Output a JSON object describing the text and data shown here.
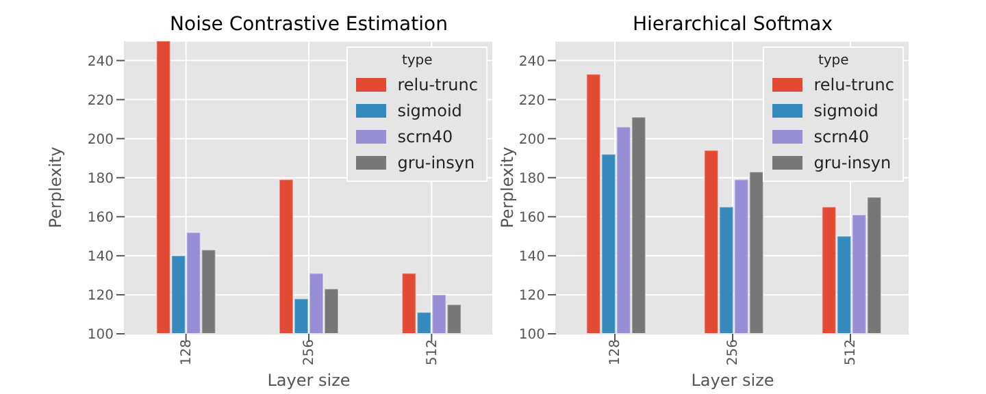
{
  "chart_data": [
    {
      "type": "bar",
      "title": "Noise Contrastive Estimation",
      "xlabel": "Layer size",
      "ylabel": "Perplexity",
      "categories": [
        "128",
        "256",
        "512"
      ],
      "series": [
        {
          "name": "relu-trunc",
          "color": "#e24a33",
          "values": [
            250,
            179,
            131
          ]
        },
        {
          "name": "sigmoid",
          "color": "#348abd",
          "values": [
            140,
            118,
            111
          ]
        },
        {
          "name": "scrn40",
          "color": "#988ed5",
          "values": [
            152,
            131,
            120
          ]
        },
        {
          "name": "gru-insyn",
          "color": "#777777",
          "values": [
            143,
            123,
            115
          ]
        }
      ],
      "ylim": [
        100,
        250
      ],
      "yticks": [
        100,
        120,
        140,
        160,
        180,
        200,
        220,
        240
      ],
      "grid": true,
      "legend": "top right",
      "legend_title": "type"
    },
    {
      "type": "bar",
      "title": "Hierarchical Softmax",
      "xlabel": "Layer size",
      "ylabel": "Perplexity",
      "categories": [
        "128",
        "256",
        "512"
      ],
      "series": [
        {
          "name": "relu-trunc",
          "color": "#e24a33",
          "values": [
            233,
            194,
            165
          ]
        },
        {
          "name": "sigmoid",
          "color": "#348abd",
          "values": [
            192,
            165,
            150
          ]
        },
        {
          "name": "scrn40",
          "color": "#988ed5",
          "values": [
            206,
            179,
            161
          ]
        },
        {
          "name": "gru-insyn",
          "color": "#777777",
          "values": [
            211,
            183,
            170
          ]
        }
      ],
      "ylim": [
        100,
        250
      ],
      "yticks": [
        100,
        120,
        140,
        160,
        180,
        200,
        220,
        240
      ],
      "grid": true,
      "legend": "top right",
      "legend_title": "type"
    }
  ]
}
